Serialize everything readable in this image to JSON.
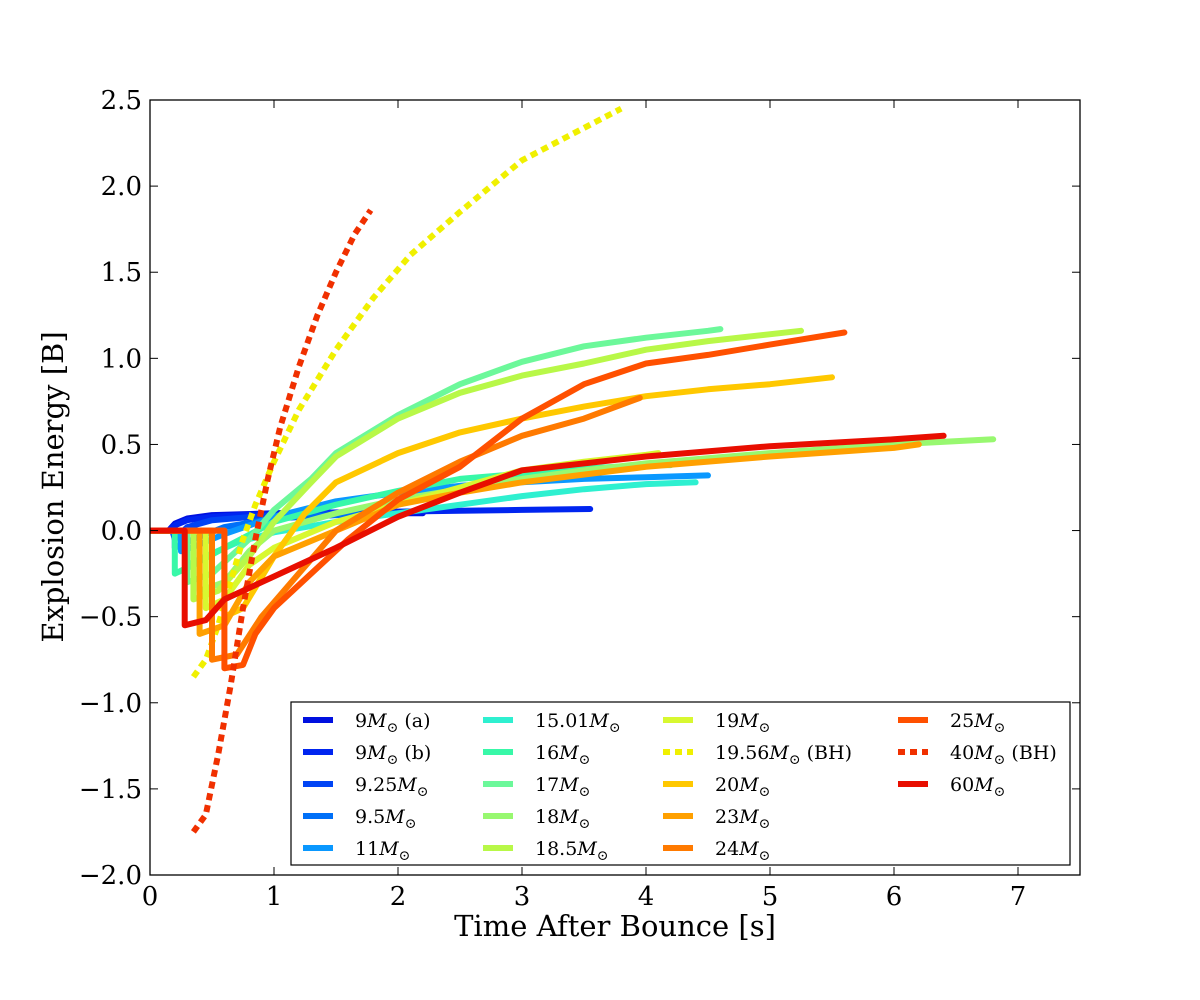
{
  "chart_data": {
    "type": "line",
    "title": "",
    "xlabel": "Time After Bounce [s]",
    "ylabel": "Explosion Energy [B]",
    "xlim": [
      0,
      7.5
    ],
    "ylim": [
      -2.0,
      2.5
    ],
    "xticks": [
      0,
      1,
      2,
      3,
      4,
      5,
      6,
      7
    ],
    "xtick_labels": [
      "0",
      "1",
      "2",
      "3",
      "4",
      "5",
      "6",
      "7"
    ],
    "yticks": [
      2.5,
      2.0,
      1.5,
      1.0,
      0.5,
      0.0,
      -0.5,
      -1.0,
      -1.5,
      -2.0
    ],
    "ytick_labels": [
      "2.5",
      "2.0",
      "1.5",
      "1.0",
      "0.5",
      "0.0",
      "−0.5",
      "−1.0",
      "−1.5",
      "−2.0"
    ],
    "grid": false,
    "legend_position": "lower-right",
    "series": [
      {
        "name": "9M_sun (a)",
        "mass": "9",
        "suffix": " (a)",
        "color": "#0010e0",
        "dashed": false,
        "points": [
          [
            0,
            0
          ],
          [
            0.15,
            0
          ],
          [
            0.2,
            0.04
          ],
          [
            0.3,
            0.07
          ],
          [
            0.5,
            0.09
          ],
          [
            1.0,
            0.1
          ],
          [
            1.5,
            0.1
          ],
          [
            2.2,
            0.1
          ]
        ]
      },
      {
        "name": "9M_sun (b)",
        "mass": "9",
        "suffix": " (b)",
        "color": "#0025f0",
        "dashed": false,
        "points": [
          [
            0,
            0
          ],
          [
            0.15,
            0
          ],
          [
            0.2,
            0.03
          ],
          [
            0.3,
            0.06
          ],
          [
            0.5,
            0.08
          ],
          [
            1.0,
            0.1
          ],
          [
            2.0,
            0.11
          ],
          [
            2.5,
            0.115
          ],
          [
            3.0,
            0.12
          ],
          [
            3.55,
            0.125
          ]
        ]
      },
      {
        "name": "9.25M_sun",
        "mass": "9.25",
        "suffix": "",
        "color": "#0044f5",
        "dashed": false,
        "points": [
          [
            0,
            0
          ],
          [
            0.18,
            0
          ],
          [
            0.2,
            -0.05
          ],
          [
            0.3,
            0.02
          ],
          [
            0.5,
            0.06
          ],
          [
            1.0,
            0.09
          ],
          [
            1.5,
            0.1
          ],
          [
            2.0,
            0.1
          ]
        ]
      },
      {
        "name": "9.5M_sun",
        "mass": "9.5",
        "suffix": "",
        "color": "#0070f8",
        "dashed": false,
        "points": [
          [
            0,
            0
          ],
          [
            0.2,
            0
          ],
          [
            0.2,
            -0.1
          ],
          [
            0.35,
            -0.05
          ],
          [
            0.6,
            0.02
          ],
          [
            1.0,
            0.07
          ],
          [
            1.5,
            0.09
          ],
          [
            2.0,
            0.1
          ]
        ]
      },
      {
        "name": "11M_sun",
        "mass": "11",
        "suffix": "",
        "color": "#0a98ff",
        "dashed": false,
        "points": [
          [
            0,
            0
          ],
          [
            0.25,
            0
          ],
          [
            0.25,
            -0.12
          ],
          [
            0.4,
            -0.08
          ],
          [
            0.6,
            -0.02
          ],
          [
            1.0,
            0.08
          ],
          [
            1.5,
            0.17
          ],
          [
            2.0,
            0.22
          ],
          [
            2.5,
            0.26
          ],
          [
            3.0,
            0.28
          ],
          [
            3.5,
            0.3
          ],
          [
            4.0,
            0.31
          ],
          [
            4.5,
            0.32
          ]
        ]
      },
      {
        "name": "15.01M_sun",
        "mass": "15.01",
        "suffix": "",
        "color": "#2ef0d0",
        "dashed": false,
        "points": [
          [
            0,
            0
          ],
          [
            0.3,
            0
          ],
          [
            0.3,
            -0.2
          ],
          [
            0.45,
            -0.15
          ],
          [
            0.7,
            -0.07
          ],
          [
            1.0,
            -0.01
          ],
          [
            1.5,
            0.05
          ],
          [
            2.0,
            0.1
          ],
          [
            2.5,
            0.15
          ],
          [
            3.0,
            0.2
          ],
          [
            3.5,
            0.24
          ],
          [
            4.0,
            0.27
          ],
          [
            4.4,
            0.28
          ]
        ]
      },
      {
        "name": "16M_sun",
        "mass": "16",
        "suffix": "",
        "color": "#38f8a8",
        "dashed": false,
        "points": [
          [
            0,
            0
          ],
          [
            0.2,
            0
          ],
          [
            0.2,
            -0.25
          ],
          [
            0.35,
            -0.2
          ],
          [
            0.6,
            -0.1
          ],
          [
            1.0,
            0.05
          ],
          [
            1.5,
            0.15
          ],
          [
            2.0,
            0.23
          ],
          [
            2.5,
            0.3
          ],
          [
            3.0,
            0.33
          ],
          [
            3.5,
            0.36
          ],
          [
            4.0,
            0.38
          ],
          [
            4.2,
            0.38
          ]
        ]
      },
      {
        "name": "17M_sun",
        "mass": "17",
        "suffix": "",
        "color": "#6cf89a",
        "dashed": false,
        "points": [
          [
            0,
            0
          ],
          [
            0.3,
            0
          ],
          [
            0.3,
            -0.3
          ],
          [
            0.5,
            -0.25
          ],
          [
            0.8,
            -0.05
          ],
          [
            1.0,
            0.12
          ],
          [
            1.3,
            0.3
          ],
          [
            1.5,
            0.45
          ],
          [
            2.0,
            0.67
          ],
          [
            2.5,
            0.85
          ],
          [
            3.0,
            0.98
          ],
          [
            3.5,
            1.07
          ],
          [
            4.0,
            1.12
          ],
          [
            4.5,
            1.16
          ],
          [
            4.6,
            1.17
          ]
        ]
      },
      {
        "name": "18M_sun",
        "mass": "18",
        "suffix": "",
        "color": "#98f870",
        "dashed": false,
        "points": [
          [
            0,
            0
          ],
          [
            0.4,
            0
          ],
          [
            0.4,
            -0.35
          ],
          [
            0.6,
            -0.3
          ],
          [
            0.8,
            -0.12
          ],
          [
            1.0,
            0.0
          ],
          [
            1.5,
            0.1
          ],
          [
            2.0,
            0.18
          ],
          [
            2.5,
            0.24
          ],
          [
            3.0,
            0.3
          ],
          [
            3.5,
            0.35
          ],
          [
            4.0,
            0.39
          ],
          [
            5.0,
            0.45
          ],
          [
            6.0,
            0.5
          ],
          [
            6.8,
            0.53
          ]
        ]
      },
      {
        "name": "18.5M_sun",
        "mass": "18.5",
        "suffix": "",
        "color": "#b8f848",
        "dashed": false,
        "points": [
          [
            0,
            0
          ],
          [
            0.35,
            0
          ],
          [
            0.35,
            -0.4
          ],
          [
            0.55,
            -0.35
          ],
          [
            0.8,
            -0.15
          ],
          [
            1.0,
            0.05
          ],
          [
            1.3,
            0.28
          ],
          [
            1.5,
            0.43
          ],
          [
            2.0,
            0.65
          ],
          [
            2.5,
            0.8
          ],
          [
            3.0,
            0.9
          ],
          [
            3.5,
            0.97
          ],
          [
            4.0,
            1.05
          ],
          [
            4.5,
            1.1
          ],
          [
            5.25,
            1.16
          ]
        ]
      },
      {
        "name": "19M_sun",
        "mass": "19",
        "suffix": "",
        "color": "#d8f830",
        "dashed": false,
        "points": [
          [
            0,
            0
          ],
          [
            0.45,
            0
          ],
          [
            0.45,
            -0.45
          ],
          [
            0.6,
            -0.4
          ],
          [
            0.8,
            -0.2
          ],
          [
            1.0,
            -0.1
          ],
          [
            1.5,
            0.05
          ],
          [
            2.0,
            0.15
          ],
          [
            2.5,
            0.25
          ],
          [
            3.0,
            0.35
          ],
          [
            3.5,
            0.4
          ],
          [
            4.0,
            0.44
          ],
          [
            4.1,
            0.45
          ]
        ]
      },
      {
        "name": "19.56M_sun (BH)",
        "mass": "19.56",
        "suffix": " (BH)",
        "color": "#f0f000",
        "dashed": true,
        "points": [
          [
            0.35,
            -0.85
          ],
          [
            0.45,
            -0.75
          ],
          [
            0.55,
            -0.55
          ],
          [
            0.65,
            -0.3
          ],
          [
            0.75,
            -0.05
          ],
          [
            0.85,
            0.15
          ],
          [
            1.0,
            0.4
          ],
          [
            1.2,
            0.7
          ],
          [
            1.5,
            1.05
          ],
          [
            1.8,
            1.35
          ],
          [
            2.1,
            1.6
          ],
          [
            2.5,
            1.85
          ],
          [
            3.0,
            2.15
          ],
          [
            3.4,
            2.3
          ],
          [
            3.8,
            2.45
          ]
        ]
      },
      {
        "name": "20M_sun",
        "mass": "20",
        "suffix": "",
        "color": "#ffc800",
        "dashed": false,
        "points": [
          [
            0,
            0
          ],
          [
            0.6,
            0
          ],
          [
            0.6,
            -0.5
          ],
          [
            0.75,
            -0.45
          ],
          [
            1.0,
            -0.15
          ],
          [
            1.25,
            0.1
          ],
          [
            1.5,
            0.28
          ],
          [
            2.0,
            0.45
          ],
          [
            2.5,
            0.57
          ],
          [
            3.0,
            0.65
          ],
          [
            3.5,
            0.72
          ],
          [
            4.0,
            0.78
          ],
          [
            4.5,
            0.82
          ],
          [
            5.0,
            0.85
          ],
          [
            5.5,
            0.89
          ]
        ]
      },
      {
        "name": "23M_sun",
        "mass": "23",
        "suffix": "",
        "color": "#ffa000",
        "dashed": false,
        "points": [
          [
            0,
            0
          ],
          [
            0.4,
            0
          ],
          [
            0.4,
            -0.6
          ],
          [
            0.6,
            -0.55
          ],
          [
            0.8,
            -0.3
          ],
          [
            1.0,
            -0.15
          ],
          [
            1.5,
            0.0
          ],
          [
            2.0,
            0.15
          ],
          [
            2.5,
            0.22
          ],
          [
            3.0,
            0.28
          ],
          [
            4.0,
            0.37
          ],
          [
            5.0,
            0.43
          ],
          [
            6.0,
            0.48
          ],
          [
            6.2,
            0.5
          ]
        ]
      },
      {
        "name": "24M_sun",
        "mass": "24",
        "suffix": "",
        "color": "#ff7a00",
        "dashed": false,
        "points": [
          [
            0,
            0
          ],
          [
            0.5,
            0
          ],
          [
            0.5,
            -0.75
          ],
          [
            0.7,
            -0.72
          ],
          [
            0.9,
            -0.5
          ],
          [
            1.2,
            -0.25
          ],
          [
            1.5,
            0.0
          ],
          [
            2.0,
            0.22
          ],
          [
            2.5,
            0.4
          ],
          [
            3.0,
            0.55
          ],
          [
            3.5,
            0.65
          ],
          [
            3.95,
            0.77
          ]
        ]
      },
      {
        "name": "25M_sun",
        "mass": "25",
        "suffix": "",
        "color": "#ff5000",
        "dashed": false,
        "points": [
          [
            0,
            0
          ],
          [
            0.6,
            0
          ],
          [
            0.6,
            -0.8
          ],
          [
            0.75,
            -0.78
          ],
          [
            0.85,
            -0.6
          ],
          [
            1.0,
            -0.45
          ],
          [
            1.3,
            -0.25
          ],
          [
            1.6,
            -0.05
          ],
          [
            2.0,
            0.18
          ],
          [
            2.5,
            0.37
          ],
          [
            3.0,
            0.65
          ],
          [
            3.5,
            0.85
          ],
          [
            4.0,
            0.97
          ],
          [
            4.5,
            1.02
          ],
          [
            5.0,
            1.08
          ],
          [
            5.6,
            1.15
          ]
        ]
      },
      {
        "name": "40M_sun (BH)",
        "mass": "40",
        "suffix": " (BH)",
        "color": "#f03000",
        "dashed": true,
        "points": [
          [
            0.35,
            -1.75
          ],
          [
            0.45,
            -1.65
          ],
          [
            0.55,
            -1.3
          ],
          [
            0.65,
            -0.9
          ],
          [
            0.75,
            -0.45
          ],
          [
            0.85,
            -0.05
          ],
          [
            0.95,
            0.3
          ],
          [
            1.05,
            0.6
          ],
          [
            1.2,
            0.95
          ],
          [
            1.35,
            1.25
          ],
          [
            1.5,
            1.5
          ],
          [
            1.65,
            1.72
          ],
          [
            1.78,
            1.86
          ]
        ]
      },
      {
        "name": "60M_sun",
        "mass": "60",
        "suffix": "",
        "color": "#e80e00",
        "dashed": false,
        "points": [
          [
            0,
            0
          ],
          [
            0.28,
            0
          ],
          [
            0.28,
            -0.55
          ],
          [
            0.45,
            -0.52
          ],
          [
            0.6,
            -0.4
          ],
          [
            0.9,
            -0.3
          ],
          [
            1.2,
            -0.2
          ],
          [
            1.5,
            -0.1
          ],
          [
            2.0,
            0.08
          ],
          [
            2.5,
            0.22
          ],
          [
            3.0,
            0.35
          ],
          [
            4.0,
            0.43
          ],
          [
            5.0,
            0.49
          ],
          [
            6.0,
            0.53
          ],
          [
            6.4,
            0.55
          ]
        ]
      }
    ]
  }
}
